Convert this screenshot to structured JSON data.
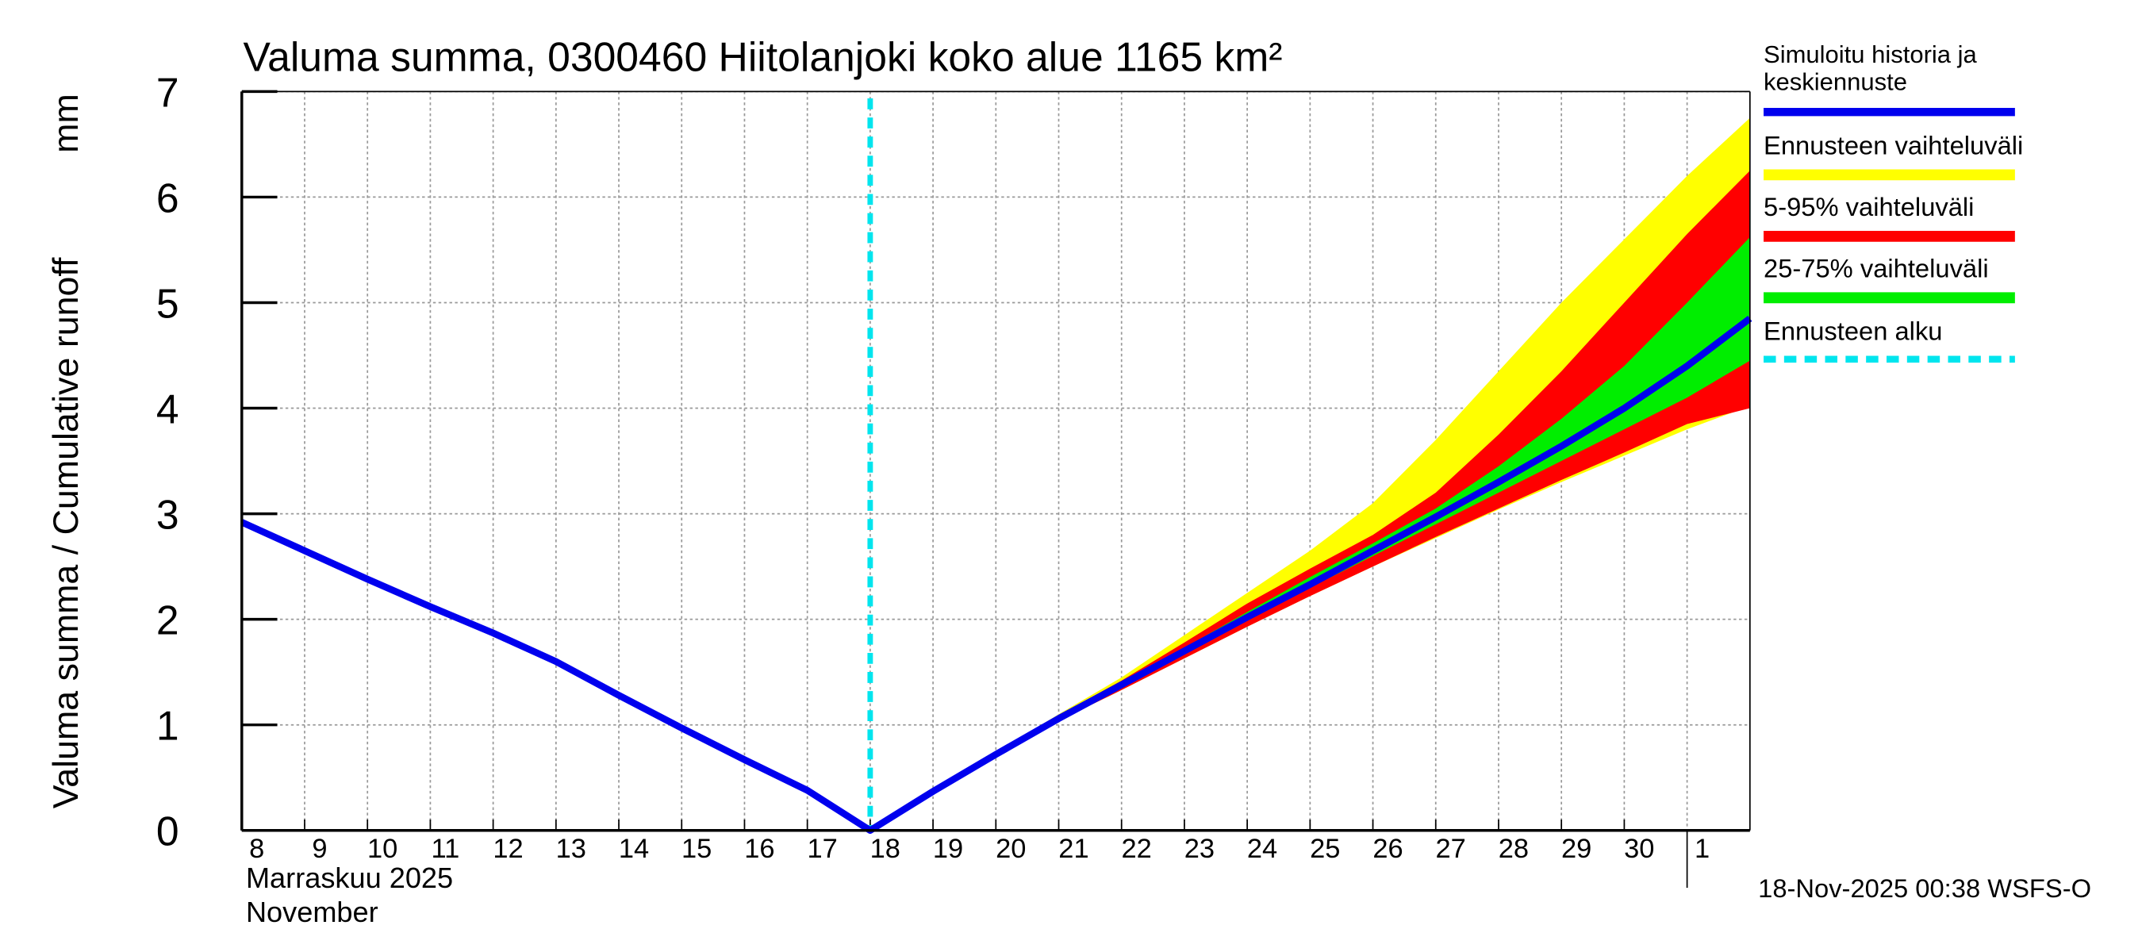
{
  "chart_data": {
    "type": "line",
    "title": "Valuma summa, 0300460 Hiitolanjoki koko alue 1165 km²",
    "ylabel": "Valuma summa / Cumulative runoff",
    "yunit": "mm",
    "xlabel": [
      "Marraskuu 2025",
      "November"
    ],
    "footer": "18-Nov-2025 00:38 WSFS-O",
    "ylim": [
      0,
      7
    ],
    "yticks": [
      0,
      1,
      2,
      3,
      4,
      5,
      6,
      7
    ],
    "xlim": [
      "2025-11-08",
      "2025-12-02"
    ],
    "xticks": [
      {
        "value": "2025-11-08",
        "label": "8"
      },
      {
        "value": "2025-11-09",
        "label": "9"
      },
      {
        "value": "2025-11-10",
        "label": "10"
      },
      {
        "value": "2025-11-11",
        "label": "11"
      },
      {
        "value": "2025-11-12",
        "label": "12"
      },
      {
        "value": "2025-11-13",
        "label": "13"
      },
      {
        "value": "2025-11-14",
        "label": "14"
      },
      {
        "value": "2025-11-15",
        "label": "15"
      },
      {
        "value": "2025-11-16",
        "label": "16"
      },
      {
        "value": "2025-11-17",
        "label": "17"
      },
      {
        "value": "2025-11-18",
        "label": "18"
      },
      {
        "value": "2025-11-19",
        "label": "19"
      },
      {
        "value": "2025-11-20",
        "label": "20"
      },
      {
        "value": "2025-11-21",
        "label": "21"
      },
      {
        "value": "2025-11-22",
        "label": "22"
      },
      {
        "value": "2025-11-23",
        "label": "23"
      },
      {
        "value": "2025-11-24",
        "label": "24"
      },
      {
        "value": "2025-11-25",
        "label": "25"
      },
      {
        "value": "2025-11-26",
        "label": "26"
      },
      {
        "value": "2025-11-27",
        "label": "27"
      },
      {
        "value": "2025-11-28",
        "label": "28"
      },
      {
        "value": "2025-11-29",
        "label": "29"
      },
      {
        "value": "2025-11-30",
        "label": "30"
      },
      {
        "value": "2025-12-01",
        "label": "1"
      }
    ],
    "grid": true,
    "bands": [
      {
        "name": "Ennusteen vaihteluväli",
        "color": "#ffff00",
        "x": [
          "2025-11-20",
          "2025-11-21",
          "2025-11-22",
          "2025-11-23",
          "2025-11-24",
          "2025-11-25",
          "2025-11-26",
          "2025-11-27",
          "2025-11-28",
          "2025-11-29",
          "2025-11-30",
          "2025-12-01",
          "2025-12-02"
        ],
        "low": [
          0.72,
          1.04,
          1.33,
          1.63,
          1.93,
          2.22,
          2.5,
          2.77,
          3.04,
          3.3,
          3.55,
          3.8,
          4.02
        ],
        "high": [
          0.74,
          1.1,
          1.45,
          1.85,
          2.25,
          2.65,
          3.1,
          3.7,
          4.35,
          5.0,
          5.6,
          6.2,
          6.75
        ]
      },
      {
        "name": "5-95% vaihteluväli",
        "color": "#ff0000",
        "x": [
          "2025-11-20",
          "2025-11-21",
          "2025-11-22",
          "2025-11-23",
          "2025-11-24",
          "2025-11-25",
          "2025-11-26",
          "2025-11-27",
          "2025-11-28",
          "2025-11-29",
          "2025-11-30",
          "2025-12-01",
          "2025-12-02"
        ],
        "low": [
          0.72,
          1.04,
          1.33,
          1.63,
          1.93,
          2.22,
          2.5,
          2.78,
          3.05,
          3.32,
          3.58,
          3.85,
          4.0
        ],
        "high": [
          0.74,
          1.09,
          1.42,
          1.78,
          2.15,
          2.48,
          2.8,
          3.2,
          3.75,
          4.35,
          5.0,
          5.65,
          6.25
        ]
      },
      {
        "name": "25-75% vaihteluväli",
        "color": "#00ee00",
        "x": [
          "2025-11-20",
          "2025-11-21",
          "2025-11-22",
          "2025-11-23",
          "2025-11-24",
          "2025-11-25",
          "2025-11-26",
          "2025-11-27",
          "2025-11-28",
          "2025-11-29",
          "2025-11-30",
          "2025-12-01",
          "2025-12-02"
        ],
        "low": [
          0.73,
          1.05,
          1.36,
          1.68,
          2.0,
          2.3,
          2.6,
          2.9,
          3.2,
          3.5,
          3.8,
          4.1,
          4.45
        ],
        "high": [
          0.74,
          1.08,
          1.4,
          1.73,
          2.07,
          2.4,
          2.72,
          3.05,
          3.45,
          3.9,
          4.4,
          5.0,
          5.62
        ]
      }
    ],
    "series": [
      {
        "name": "Simuloitu historia ja keskiennuste",
        "color": "#0000ee",
        "x": [
          "2025-11-08",
          "2025-11-09",
          "2025-11-10",
          "2025-11-11",
          "2025-11-12",
          "2025-11-13",
          "2025-11-14",
          "2025-11-15",
          "2025-11-16",
          "2025-11-17",
          "2025-11-18",
          "2025-11-19",
          "2025-11-20",
          "2025-11-21",
          "2025-11-22",
          "2025-11-23",
          "2025-11-24",
          "2025-11-25",
          "2025-11-26",
          "2025-11-27",
          "2025-11-28",
          "2025-11-29",
          "2025-11-30",
          "2025-12-01",
          "2025-12-02"
        ],
        "values": [
          2.92,
          2.65,
          2.38,
          2.12,
          1.87,
          1.6,
          1.28,
          0.97,
          0.67,
          0.38,
          0.0,
          0.37,
          0.72,
          1.06,
          1.38,
          1.7,
          2.02,
          2.33,
          2.65,
          2.97,
          3.3,
          3.64,
          4.0,
          4.4,
          4.85
        ]
      }
    ],
    "forecast_start": {
      "name": "Ennusteen alku",
      "color": "#00e5ee",
      "x": "2025-11-18"
    }
  }
}
